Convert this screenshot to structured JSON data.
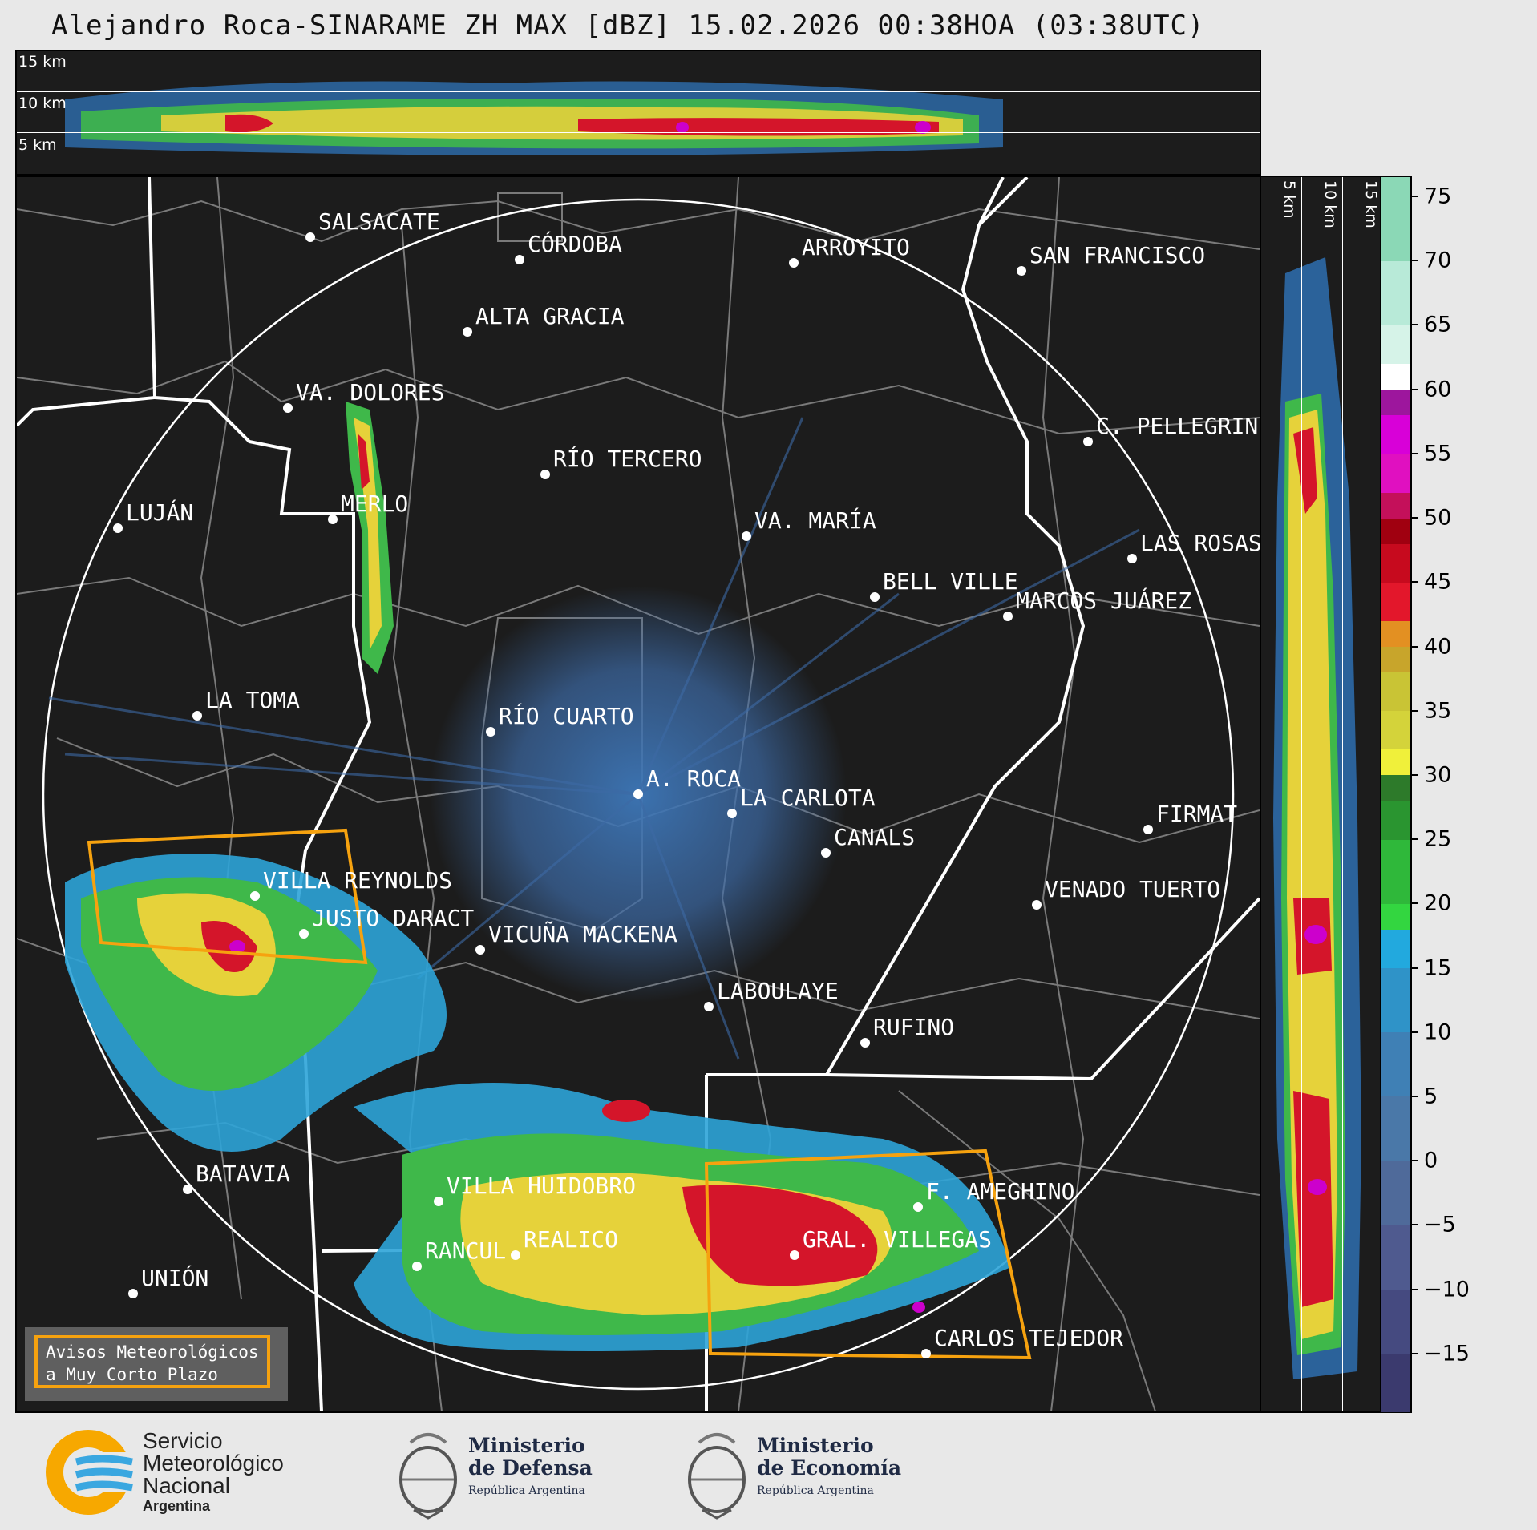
{
  "title": "Alejandro Roca-SINARAME ZH MAX [dBZ] 15.02.2026 00:38HOA (03:38UTC)",
  "height_labels": [
    "15 km",
    "10 km",
    "5 km"
  ],
  "side_height_labels": [
    "5 km",
    "10 km",
    "15 km"
  ],
  "colorbar": {
    "ticks": [
      "75",
      "70",
      "65",
      "60",
      "55",
      "50",
      "45",
      "40",
      "35",
      "30",
      "25",
      "20",
      "15",
      "10",
      "5",
      "0",
      "−5",
      "−10",
      "−15"
    ],
    "min": -19.5,
    "max": 76.5
  },
  "cities": [
    {
      "name": "SALSACATE"
    },
    {
      "name": "CÓRDOBA"
    },
    {
      "name": "ARROYITO"
    },
    {
      "name": "SAN FRANCISCO"
    },
    {
      "name": "ALTA GRACIA"
    },
    {
      "name": "VA. DOLORES"
    },
    {
      "name": "C. PELLEGRINI"
    },
    {
      "name": "RÍO TERCERO"
    },
    {
      "name": "LUJÁN"
    },
    {
      "name": "MERLO"
    },
    {
      "name": "VA. MARÍA"
    },
    {
      "name": "LAS ROSAS"
    },
    {
      "name": "BELL VILLE"
    },
    {
      "name": "MARCOS JUÁREZ"
    },
    {
      "name": "LA TOMA"
    },
    {
      "name": "RÍO CUARTO"
    },
    {
      "name": "A. ROCA"
    },
    {
      "name": "LA CARLOTA"
    },
    {
      "name": "FIRMAT"
    },
    {
      "name": "CANALS"
    },
    {
      "name": "VILLA REYNOLDS"
    },
    {
      "name": "VENADO TUERTO"
    },
    {
      "name": "JUSTO DARACT"
    },
    {
      "name": "VICUÑA MACKENA"
    },
    {
      "name": "LABOULAYE"
    },
    {
      "name": "RUFINO"
    },
    {
      "name": "BATAVIA"
    },
    {
      "name": "VILLA HUIDOBRO"
    },
    {
      "name": "F. AMEGHINO"
    },
    {
      "name": "RANCUL"
    },
    {
      "name": "REALICO"
    },
    {
      "name": "GRAL. VILLEGAS"
    },
    {
      "name": "UNIÓN"
    },
    {
      "name": "CARLOS TEJEDOR"
    }
  ],
  "avisos_label": "Avisos Meteorológicos a Muy Corto Plazo",
  "avisos_lines": [
    "Avisos Meteorológicos",
    "a Muy Corto Plazo"
  ],
  "logos": {
    "smn": [
      "Servicio",
      "Meteorológico",
      "Nacional",
      "Argentina"
    ],
    "defensa": [
      "Ministerio",
      "de Defensa",
      "República Argentina"
    ],
    "economia": [
      "Ministerio",
      "de Economía",
      "República Argentina"
    ]
  },
  "colors": {
    "accent_orange": "#f6a20f",
    "smn_blue": "#3aa7e0",
    "smn_yellow": "#f7a800"
  }
}
